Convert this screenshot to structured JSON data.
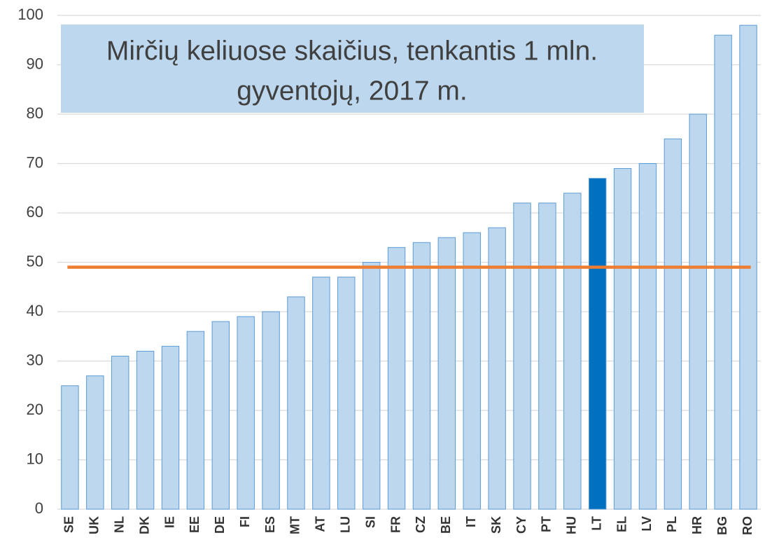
{
  "chart_data": {
    "type": "bar",
    "title": [
      "Mirčių keliuose skaičius, tenkantis 1 mln.",
      "gyventojų, 2017 m."
    ],
    "categories": [
      "SE",
      "UK",
      "NL",
      "DK",
      "IE",
      "EE",
      "DE",
      "FI",
      "ES",
      "MT",
      "AT",
      "LU",
      "SI",
      "FR",
      "CZ",
      "BE",
      "IT",
      "SK",
      "CY",
      "PT",
      "HU",
      "LT",
      "EL",
      "LV",
      "PL",
      "HR",
      "BG",
      "RO"
    ],
    "values": [
      25,
      27,
      31,
      32,
      33,
      36,
      38,
      39,
      40,
      43,
      47,
      47,
      50,
      53,
      54,
      55,
      56,
      57,
      62,
      62,
      64,
      67,
      69,
      70,
      75,
      80,
      96,
      98
    ],
    "colors": [
      "#bdd7ee",
      "#bdd7ee",
      "#bdd7ee",
      "#bdd7ee",
      "#bdd7ee",
      "#bdd7ee",
      "#bdd7ee",
      "#bdd7ee",
      "#bdd7ee",
      "#bdd7ee",
      "#bdd7ee",
      "#bdd7ee",
      "#bdd7ee",
      "#bdd7ee",
      "#bdd7ee",
      "#bdd7ee",
      "#bdd7ee",
      "#bdd7ee",
      "#bdd7ee",
      "#bdd7ee",
      "#bdd7ee",
      "#0070c0",
      "#bdd7ee",
      "#bdd7ee",
      "#bdd7ee",
      "#bdd7ee",
      "#bdd7ee",
      "#bdd7ee"
    ],
    "reference_value": 49,
    "reference_color": "#ed7d31",
    "ylim": [
      0,
      100
    ],
    "yticks": [
      0,
      10,
      20,
      30,
      40,
      50,
      60,
      70,
      80,
      90,
      100
    ],
    "grid": true
  }
}
